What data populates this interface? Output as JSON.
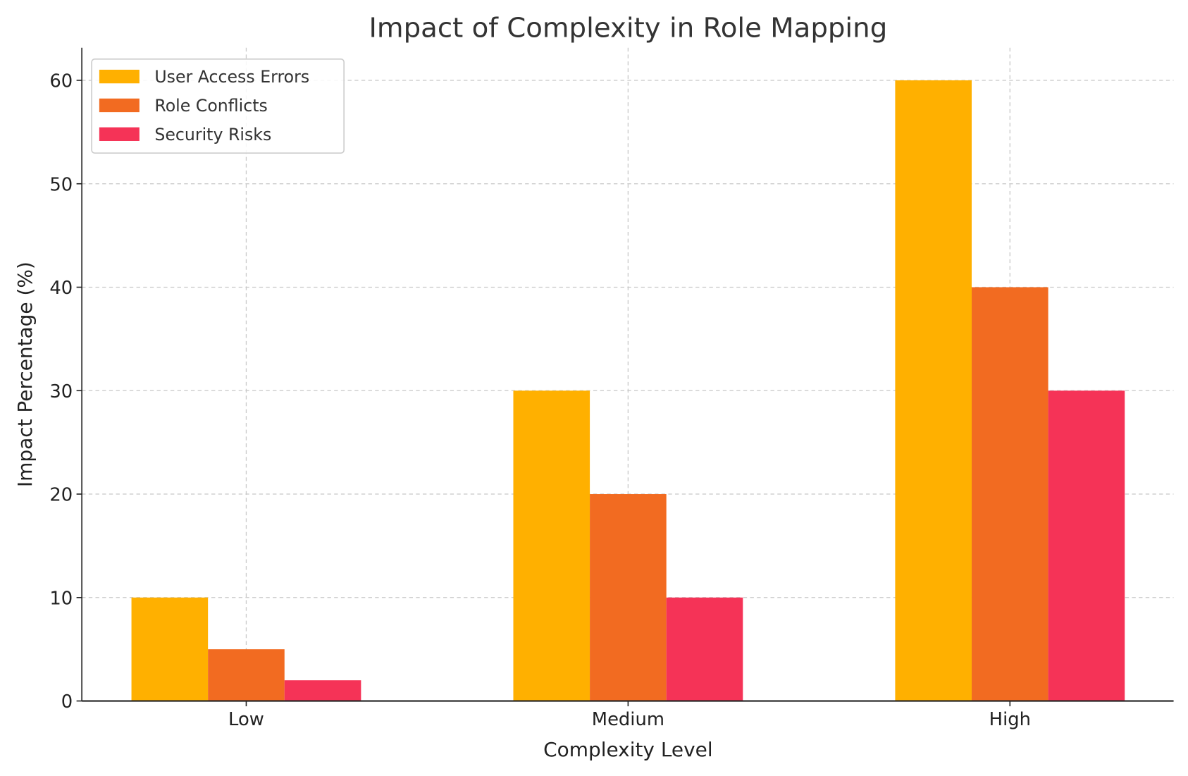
{
  "chart_data": {
    "type": "bar",
    "title": "Impact of Complexity in Role Mapping",
    "xlabel": "Complexity Level",
    "ylabel": "Impact Percentage (%)",
    "categories": [
      "Low",
      "Medium",
      "High"
    ],
    "series": [
      {
        "name": "User Access Errors",
        "values": [
          10,
          30,
          60
        ],
        "color": "#FFB000"
      },
      {
        "name": "Role Conflicts",
        "values": [
          5,
          20,
          40
        ],
        "color": "#F26B21"
      },
      {
        "name": "Security Risks",
        "values": [
          2,
          10,
          30
        ],
        "color": "#F53357"
      }
    ],
    "ylim": [
      0,
      63.15
    ],
    "yticks": [
      0,
      10,
      20,
      30,
      40,
      50,
      60
    ],
    "grid": true,
    "legend_position": "top-left"
  }
}
